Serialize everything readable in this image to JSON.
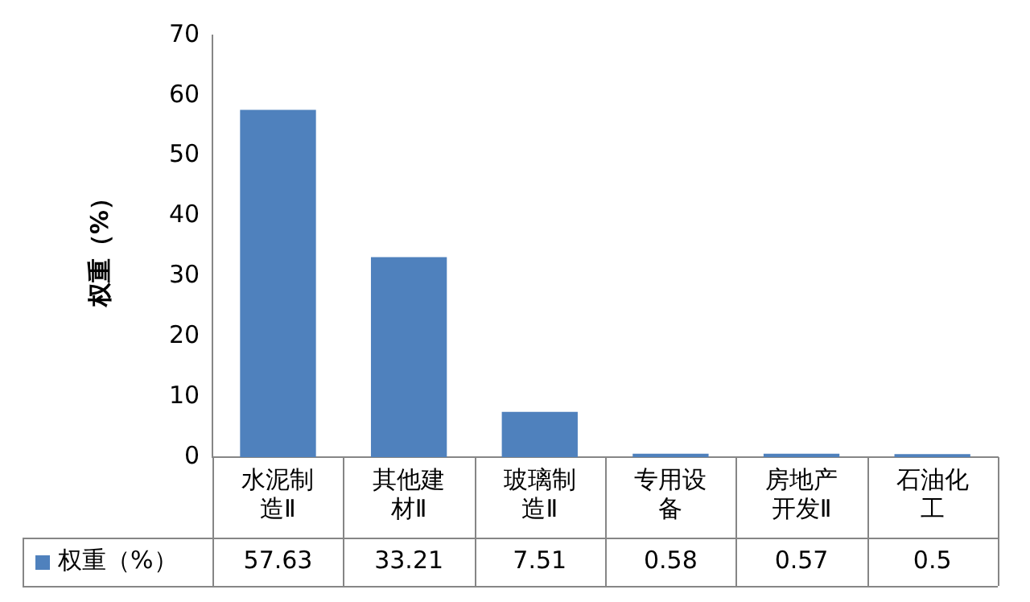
{
  "chart_data": {
    "type": "bar",
    "ylabel": "权重（%）",
    "categories": [
      "水泥制造Ⅱ",
      "其他建材Ⅱ",
      "玻璃制造Ⅱ",
      "专用设备",
      "房地产开发Ⅱ",
      "石油化工"
    ],
    "series": [
      {
        "name": "权重（%）",
        "color": "#4f81bd",
        "values": [
          57.63,
          33.21,
          7.51,
          0.58,
          0.57,
          0.5
        ]
      }
    ],
    "ylim": [
      0,
      70
    ],
    "yticks": [
      0,
      10,
      20,
      30,
      40,
      50,
      60,
      70
    ],
    "grid": false,
    "data_labels": true,
    "legend": "bottom"
  }
}
